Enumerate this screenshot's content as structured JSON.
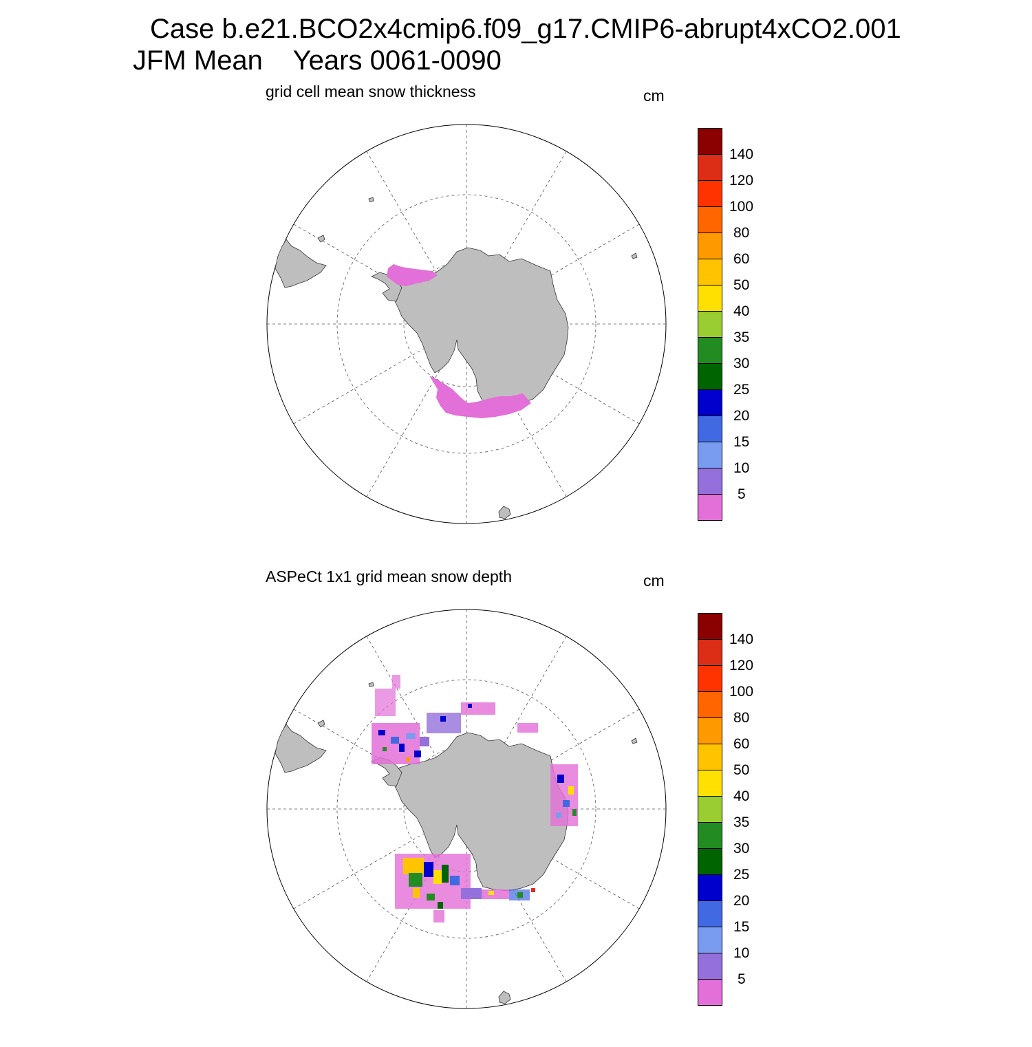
{
  "title": {
    "line1": "Case b.e21.BCO2x4cmip6.f09_g17.CMIP6-abrupt4xCO2.001",
    "line2": "JFM Mean    Years 0061-0090"
  },
  "colors": {
    "land": "#bebebe",
    "grid": "#555555",
    "border": "#000000"
  },
  "colorbar": {
    "labels": [
      "140",
      "120",
      "100",
      "80",
      "60",
      "50",
      "40",
      "35",
      "30",
      "25",
      "20",
      "15",
      "10",
      "5"
    ],
    "colors": [
      "#8b0000",
      "#dc2d17",
      "#ff3300",
      "#ff6600",
      "#ff9900",
      "#ffc300",
      "#ffe000",
      "#9acd32",
      "#228b22",
      "#006400",
      "#0000cd",
      "#4169e1",
      "#7a9cf0",
      "#9370db",
      "#e36fd8"
    ]
  },
  "panels": [
    {
      "subtitle": "grid cell mean snow thickness",
      "units": "cm",
      "icon": "south-polar-stereographic-map"
    },
    {
      "subtitle": "ASPeCt 1x1 grid mean snow depth",
      "units": "cm",
      "icon": "south-polar-stereographic-map"
    }
  ]
}
